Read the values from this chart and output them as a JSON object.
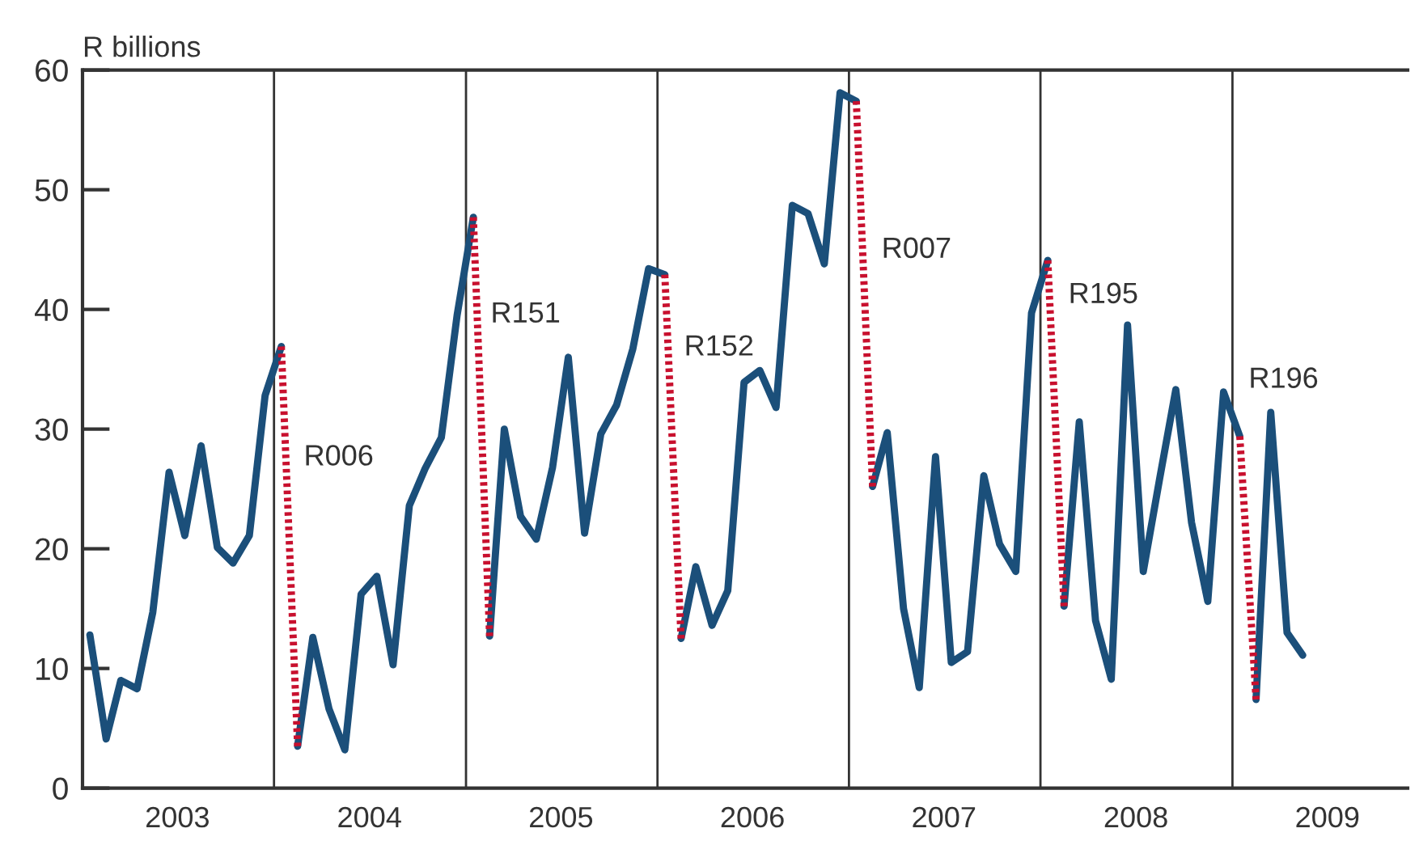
{
  "chart_data": {
    "type": "line",
    "ylabel": "R billions",
    "series": [
      {
        "color": "#1b4f7a",
        "line_style": "solid",
        "x": [
          "2003-01-15",
          "2003-02-15",
          "2003-03-15",
          "2003-04-15",
          "2003-05-15",
          "2003-06-15",
          "2003-07-15",
          "2003-08-15",
          "2003-09-15",
          "2003-10-15",
          "2003-11-15",
          "2003-12-15",
          "2004-01-15"
        ],
        "values": [
          12.8,
          4.1,
          9.0,
          8.3,
          14.7,
          26.4,
          21.1,
          28.6,
          20.1,
          18.8,
          21.1,
          32.8,
          36.9
        ]
      },
      {
        "color": "#1b4f7a",
        "line_style": "solid",
        "x": [
          "2004-02-15",
          "2004-03-15",
          "2004-04-15",
          "2004-05-15",
          "2004-06-15",
          "2004-07-15",
          "2004-08-15",
          "2004-09-15",
          "2004-10-15",
          "2004-11-15",
          "2004-12-15",
          "2005-01-15"
        ],
        "values": [
          3.5,
          12.6,
          6.6,
          3.2,
          16.2,
          17.7,
          10.3,
          23.6,
          26.7,
          29.3,
          39.5,
          47.7
        ]
      },
      {
        "color": "#1b4f7a",
        "line_style": "solid",
        "x": [
          "2005-02-15",
          "2005-03-15",
          "2005-04-15",
          "2005-05-15",
          "2005-06-15",
          "2005-07-15",
          "2005-08-15",
          "2005-09-15",
          "2005-10-15",
          "2005-11-15",
          "2005-12-15",
          "2006-01-15"
        ],
        "values": [
          12.7,
          30.0,
          22.7,
          20.8,
          26.8,
          36.0,
          21.3,
          29.6,
          32.0,
          36.7,
          43.4,
          42.9
        ]
      },
      {
        "color": "#1b4f7a",
        "line_style": "solid",
        "x": [
          "2006-02-15",
          "2006-03-15",
          "2006-04-15",
          "2006-05-15",
          "2006-06-15",
          "2006-07-15",
          "2006-08-15",
          "2006-09-15",
          "2006-10-15",
          "2006-11-15",
          "2006-12-15",
          "2007-01-15"
        ],
        "values": [
          12.5,
          18.5,
          13.6,
          16.5,
          33.9,
          34.9,
          31.8,
          48.7,
          48.0,
          43.8,
          58.1,
          57.4
        ]
      },
      {
        "color": "#1b4f7a",
        "line_style": "solid",
        "x": [
          "2007-02-15",
          "2007-03-15",
          "2007-04-15",
          "2007-05-15",
          "2007-06-15",
          "2007-07-15",
          "2007-08-15",
          "2007-09-15",
          "2007-10-15",
          "2007-11-15",
          "2007-12-15",
          "2008-01-15"
        ],
        "values": [
          25.2,
          29.7,
          15.0,
          8.4,
          27.7,
          10.5,
          11.4,
          26.1,
          20.4,
          18.1,
          39.7,
          44.1
        ]
      },
      {
        "color": "#1b4f7a",
        "line_style": "solid",
        "x": [
          "2008-02-15",
          "2008-03-15",
          "2008-04-15",
          "2008-05-15",
          "2008-06-15",
          "2008-07-15",
          "2008-08-15",
          "2008-09-15",
          "2008-10-15",
          "2008-11-15",
          "2008-12-15",
          "2009-01-15"
        ],
        "values": [
          15.2,
          30.6,
          14.0,
          9.1,
          38.7,
          18.1,
          25.8,
          33.3,
          22.2,
          15.6,
          33.1,
          29.4
        ]
      },
      {
        "color": "#1b4f7a",
        "line_style": "solid",
        "x": [
          "2009-02-15",
          "2009-03-15",
          "2009-04-15",
          "2009-05-15"
        ],
        "values": [
          7.4,
          31.4,
          13.0,
          11.1
        ]
      },
      {
        "color": "#c8102e",
        "line_style": "dotted",
        "x": [
          "2004-01-15",
          "2004-02-15"
        ],
        "values": [
          36.9,
          3.5
        ]
      },
      {
        "color": "#c8102e",
        "line_style": "dotted",
        "x": [
          "2005-01-15",
          "2005-02-15"
        ],
        "values": [
          47.7,
          12.7
        ]
      },
      {
        "color": "#c8102e",
        "line_style": "dotted",
        "x": [
          "2006-01-15",
          "2006-02-15"
        ],
        "values": [
          42.9,
          12.5
        ]
      },
      {
        "color": "#c8102e",
        "line_style": "dotted",
        "x": [
          "2007-01-15",
          "2007-02-15"
        ],
        "values": [
          57.4,
          25.2
        ]
      },
      {
        "color": "#c8102e",
        "line_style": "dotted",
        "x": [
          "2008-01-15",
          "2008-02-15"
        ],
        "values": [
          44.1,
          15.2
        ]
      },
      {
        "color": "#c8102e",
        "line_style": "dotted",
        "x": [
          "2009-01-15",
          "2009-02-15"
        ],
        "values": [
          29.4,
          7.4
        ]
      }
    ],
    "annotations": [
      "R006",
      "R151",
      "R152",
      "R007",
      "R195",
      "R196"
    ],
    "ref_lines": [
      {
        "axis": "x",
        "value": "2004",
        "color": "#333333"
      },
      {
        "axis": "x",
        "value": "2005",
        "color": "#333333"
      },
      {
        "axis": "x",
        "value": "2006",
        "color": "#333333"
      },
      {
        "axis": "x",
        "value": "2007",
        "color": "#333333"
      },
      {
        "axis": "x",
        "value": "2008",
        "color": "#333333"
      },
      {
        "axis": "x",
        "value": "2009",
        "color": "#333333"
      }
    ],
    "xlim": [
      "2003",
      "2009-12"
    ],
    "xticks": [
      {
        "value": "2003-07",
        "label": "2003"
      },
      {
        "value": "2004-07",
        "label": "2004"
      },
      {
        "value": "2005-07",
        "label": "2005"
      },
      {
        "value": "2006-07",
        "label": "2006"
      },
      {
        "value": "2007-07",
        "label": "2007"
      },
      {
        "value": "2008-07",
        "label": "2008"
      },
      {
        "value": "2009-07",
        "label": "2009"
      }
    ],
    "ylim": [
      0,
      60
    ],
    "yticks": [
      0,
      10,
      20,
      30,
      40,
      50,
      60
    ],
    "grid": false,
    "marker": "none"
  }
}
